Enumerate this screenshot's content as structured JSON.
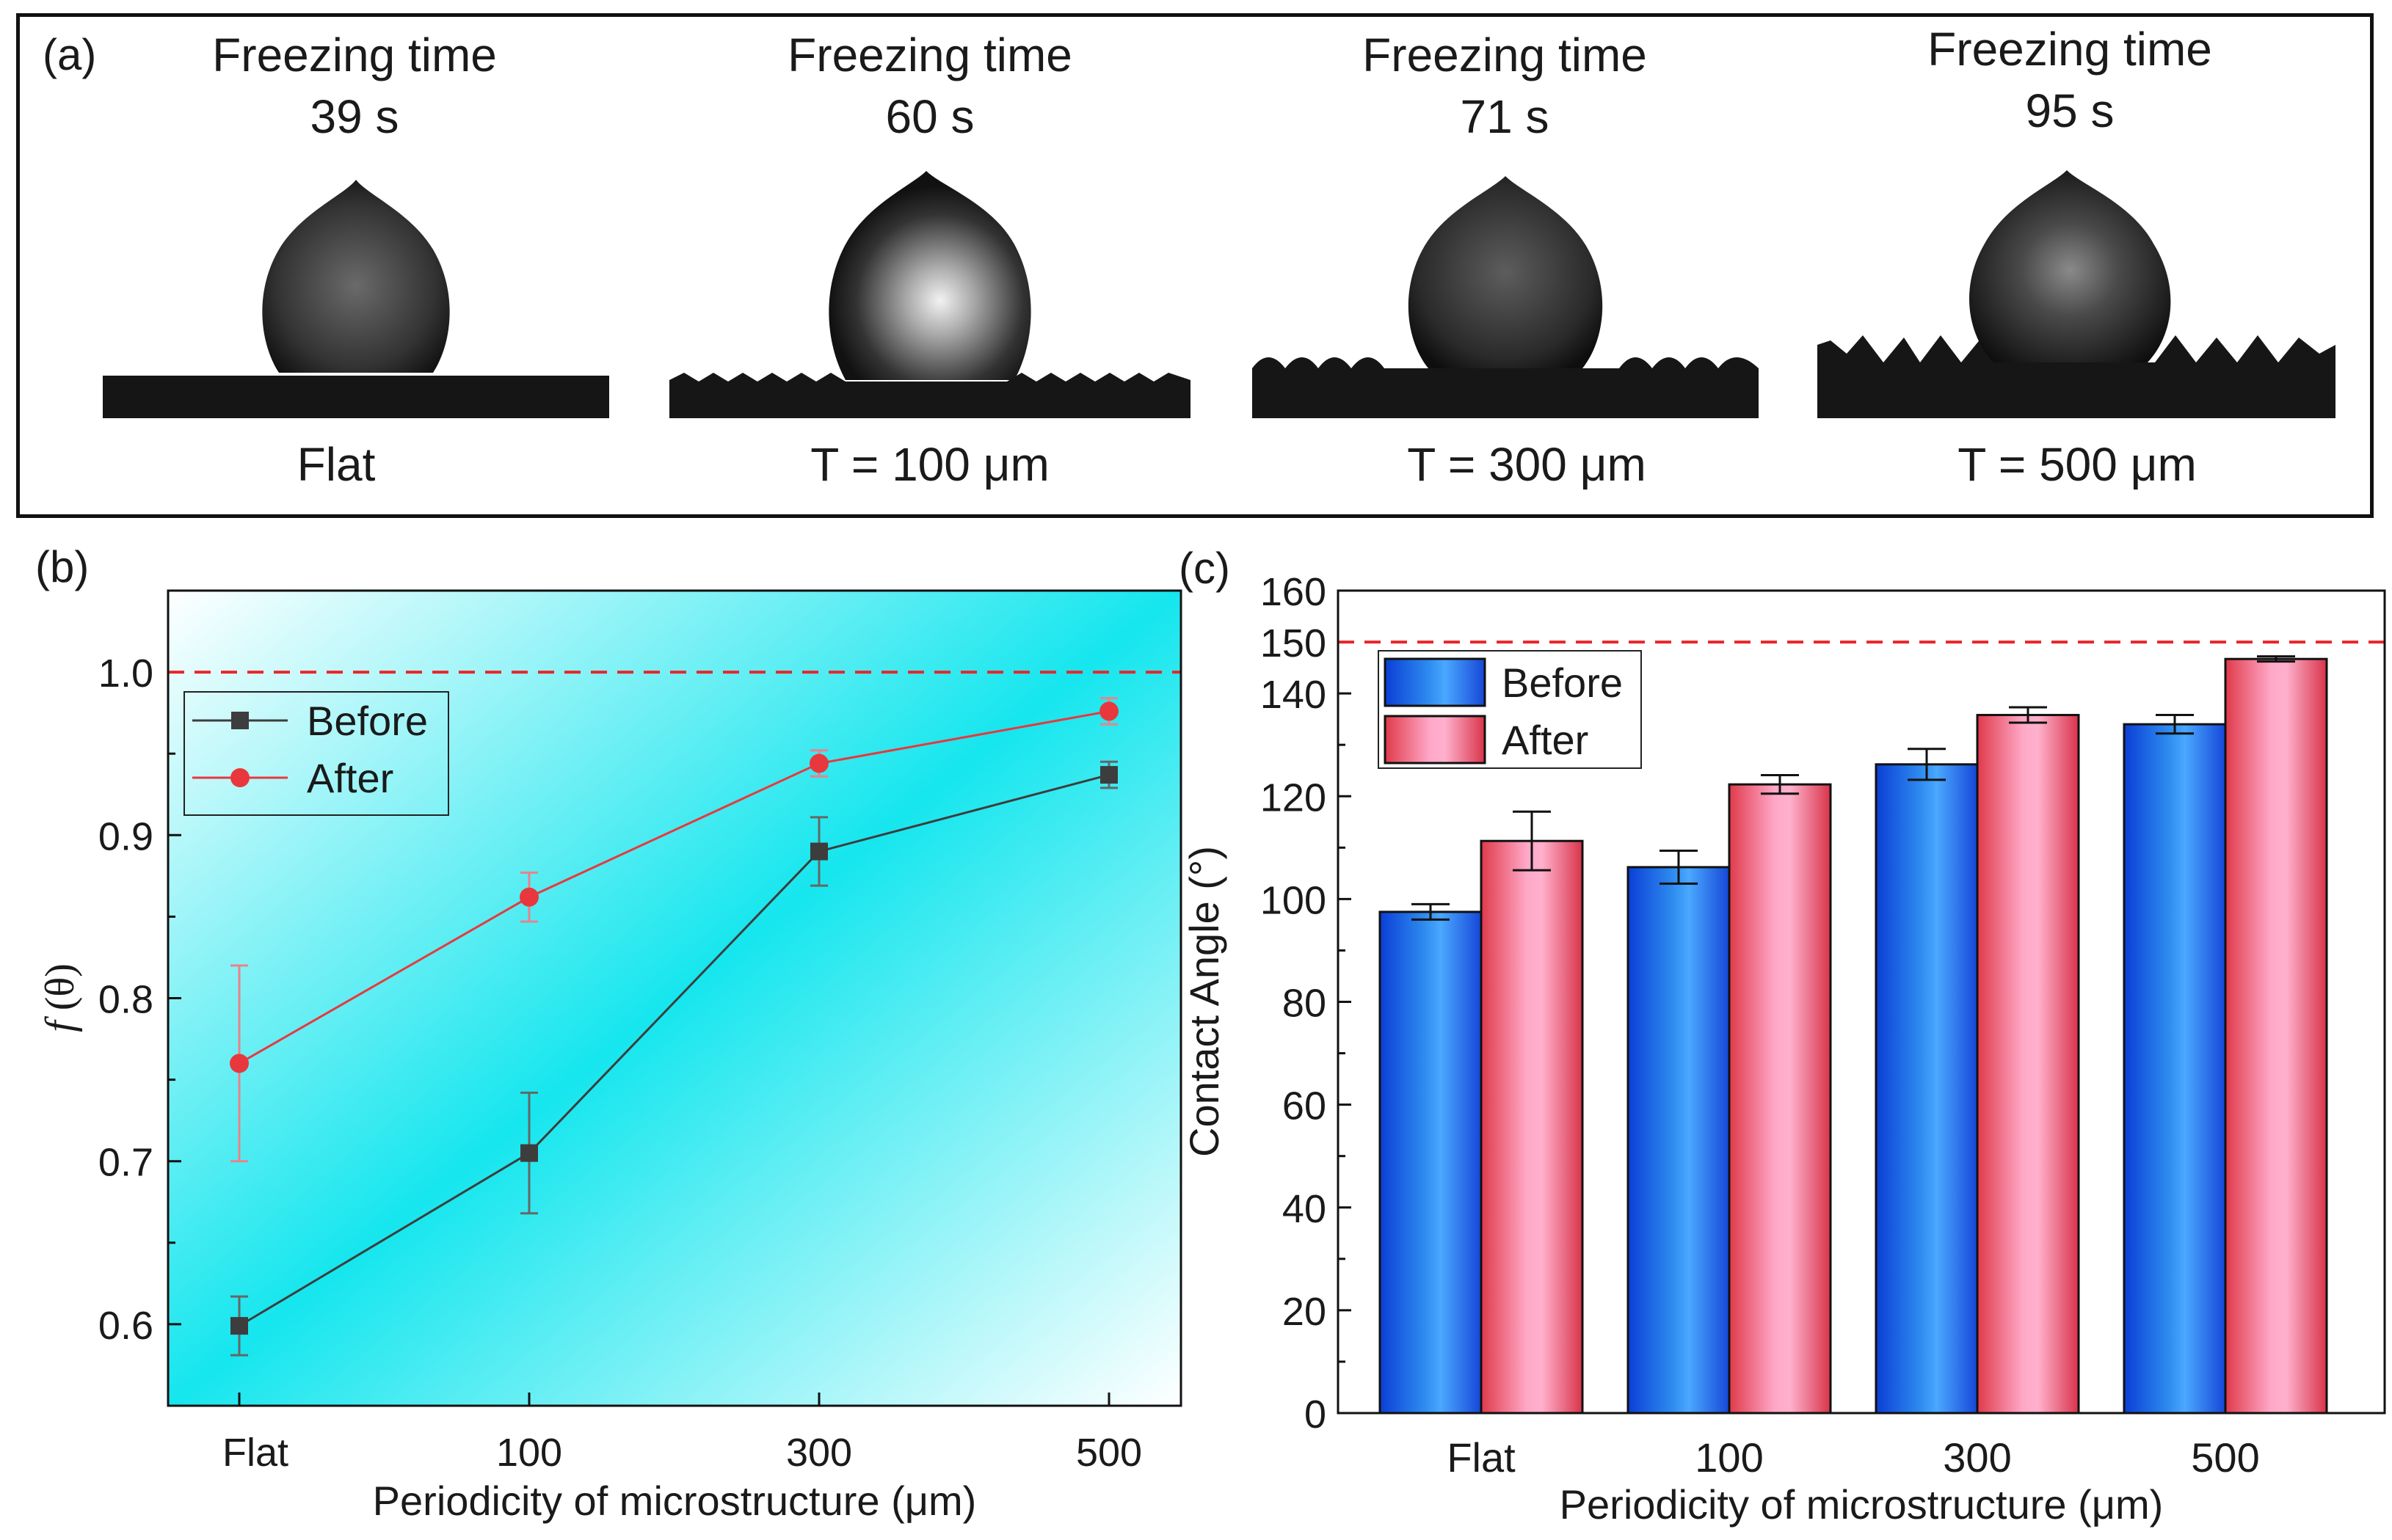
{
  "figure": {
    "panel_a": {
      "label": "(a)",
      "images": [
        {
          "freeze_title": "Freezing time",
          "freeze_value": "39 s",
          "surface": "Flat"
        },
        {
          "freeze_title": "Freezing time",
          "freeze_value": "60 s",
          "surface": "T  = 100 μm"
        },
        {
          "freeze_title": "Freezing time",
          "freeze_value": "71 s",
          "surface": "T =  300 μm"
        },
        {
          "freeze_title": "Freezing time",
          "freeze_value": "95 s",
          "surface": "T =  500 μm"
        }
      ]
    },
    "panel_b_label": "(b)",
    "panel_c_label": "(c)"
  },
  "chart_data": [
    {
      "type": "line",
      "panel": "(b)",
      "categories": [
        "Flat",
        "100",
        "300",
        "500"
      ],
      "series": [
        {
          "name": "Before",
          "values": [
            0.599,
            0.705,
            0.89,
            0.937
          ],
          "errors": [
            0.018,
            0.037,
            0.021,
            0.008
          ],
          "color": "#3d3d3d",
          "marker": "square"
        },
        {
          "name": "After",
          "values": [
            0.76,
            0.862,
            0.944,
            0.976
          ],
          "errors": [
            0.06,
            0.015,
            0.008,
            0.008
          ],
          "color": "#e8383d",
          "marker": "circle"
        }
      ],
      "reference_line": 1.0,
      "xlabel": "Periodicity of microstructure (μm)",
      "ylabel_italic": "f",
      "ylabel_rest": " (θ)",
      "ylim": [
        0.55,
        1.05
      ],
      "yticks": [
        "0.6",
        "0.7",
        "0.8",
        "0.9",
        "1.0"
      ],
      "legend_position": "upper-left"
    },
    {
      "type": "bar",
      "panel": "(c)",
      "categories": [
        "Flat",
        "100",
        "300",
        "500"
      ],
      "series": [
        {
          "name": "Before",
          "values": [
            97.5,
            106.2,
            126.2,
            134.0
          ],
          "errors": [
            1.5,
            3.2,
            3.0,
            1.8
          ],
          "color": "#2f8df0"
        },
        {
          "name": "After",
          "values": [
            111.3,
            122.3,
            135.8,
            146.7
          ],
          "errors": [
            5.7,
            1.8,
            1.5,
            0.5
          ],
          "color": "#f26f8a"
        }
      ],
      "reference_line": 150,
      "xlabel": "Periodicity of microstructure (μm)",
      "ylabel": "Contact Angle (°)",
      "ylim": [
        0,
        160
      ],
      "yticks": [
        "0",
        "20",
        "40",
        "60",
        "80",
        "100",
        "120",
        "140",
        "150",
        "160"
      ],
      "legend_position": "upper-left"
    }
  ]
}
